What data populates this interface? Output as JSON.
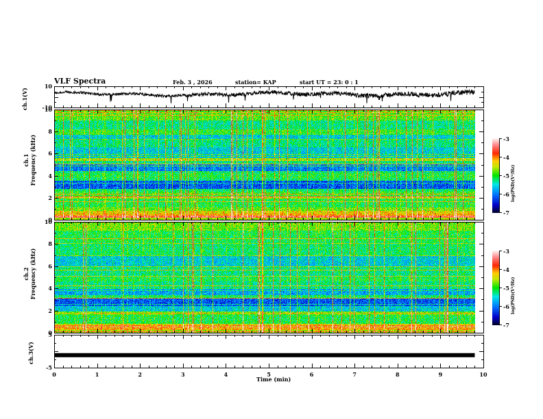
{
  "header": {
    "title": "VLF Spectra",
    "date": "Feb. 3  , 2026",
    "station": "station= KAP",
    "start_ut": "start  UT  =   23: 0  : 1"
  },
  "chart_data": [
    {
      "type": "line",
      "name": "ch1-waveform",
      "ylabel": "ch.1(V)",
      "ylim": [
        -10,
        10
      ],
      "yticks": [
        "10",
        "-10"
      ],
      "xlim": [
        0,
        10
      ],
      "data_end_min": 9.8,
      "baseline_v": 2.5,
      "amplitude_v": 3.5,
      "color": "#000000"
    },
    {
      "type": "heatmap",
      "name": "ch1-spectrogram",
      "ylabel_line1": "ch.1",
      "ylabel_line2": "Frequency  (kHz)",
      "ylim": [
        0,
        10
      ],
      "yticks": [
        "0",
        "2",
        "4",
        "6",
        "8",
        "10"
      ],
      "xlim": [
        0,
        10
      ],
      "data_end_min": 9.8,
      "bands_khz_logpsd": [
        [
          0.0,
          0.2,
          -4.6
        ],
        [
          0.2,
          0.5,
          -4.2
        ],
        [
          0.5,
          0.8,
          -4.4
        ],
        [
          0.8,
          1.1,
          -4.8
        ],
        [
          1.1,
          1.9,
          -5.1
        ],
        [
          1.9,
          2.1,
          -4.5
        ],
        [
          2.1,
          2.5,
          -5.0
        ],
        [
          2.5,
          2.8,
          -5.2
        ],
        [
          2.8,
          3.5,
          -6.2
        ],
        [
          3.5,
          3.8,
          -5.2
        ],
        [
          3.8,
          4.3,
          -5.1
        ],
        [
          4.3,
          5.0,
          -6.0
        ],
        [
          5.0,
          5.4,
          -5.3
        ],
        [
          5.4,
          5.6,
          -4.6
        ],
        [
          5.6,
          6.6,
          -5.6
        ],
        [
          6.6,
          7.3,
          -5.3
        ],
        [
          7.3,
          7.7,
          -5.6
        ],
        [
          7.7,
          8.2,
          -5.0
        ],
        [
          8.2,
          9.0,
          -5.3
        ],
        [
          9.0,
          10.0,
          -4.9
        ]
      ],
      "colorbar": {
        "label": "log(PSD)(V²/Hz)",
        "range": [
          -7,
          -3
        ],
        "ticks": [
          "-3",
          "-4",
          "-5",
          "-6",
          "-7"
        ]
      }
    },
    {
      "type": "heatmap",
      "name": "ch2-spectrogram",
      "ylabel_line1": "ch.2",
      "ylabel_line2": "Frequency  (kHz)",
      "ylim": [
        0,
        10
      ],
      "yticks": [
        "0",
        "2",
        "4",
        "6",
        "8",
        "10"
      ],
      "xlim": [
        0,
        10
      ],
      "data_end_min": 9.8,
      "bands_khz_logpsd": [
        [
          0.0,
          0.2,
          -4.6
        ],
        [
          0.2,
          0.5,
          -4.2
        ],
        [
          0.5,
          0.8,
          -4.4
        ],
        [
          0.8,
          1.6,
          -5.1
        ],
        [
          1.6,
          1.9,
          -4.8
        ],
        [
          1.9,
          2.4,
          -5.6
        ],
        [
          2.4,
          3.1,
          -6.2
        ],
        [
          3.1,
          3.4,
          -5.2
        ],
        [
          3.4,
          4.0,
          -5.8
        ],
        [
          4.0,
          4.6,
          -5.3
        ],
        [
          4.6,
          5.0,
          -5.1
        ],
        [
          5.0,
          6.0,
          -5.3
        ],
        [
          6.0,
          7.0,
          -5.6
        ],
        [
          7.0,
          8.2,
          -5.2
        ],
        [
          8.2,
          9.2,
          -5.1
        ],
        [
          9.2,
          10.0,
          -4.8
        ]
      ],
      "colorbar": {
        "label": "log(PSD)(V²/Hz)",
        "range": [
          -7,
          -3
        ],
        "ticks": [
          "-3",
          "-4",
          "-5",
          "-6",
          "-7"
        ]
      }
    },
    {
      "type": "line",
      "name": "ch3-waveform",
      "ylabel": "ch.3(V)",
      "ylim": [
        -5,
        5
      ],
      "yticks": [
        "5",
        "-5"
      ],
      "xlim": [
        0,
        10
      ],
      "data_end_min": 9.8,
      "level_v": -1.2,
      "color": "#000000"
    }
  ],
  "x_axis": {
    "label": "Time  (min)",
    "ticks": [
      "0",
      "1",
      "2",
      "3",
      "4",
      "5",
      "6",
      "7",
      "8",
      "9",
      "10"
    ],
    "range": [
      0,
      10
    ]
  }
}
